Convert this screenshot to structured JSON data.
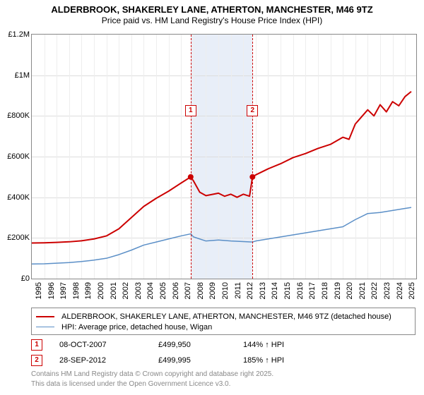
{
  "title": {
    "line1": "ALDERBROOK, SHAKERLEY LANE, ATHERTON, MANCHESTER, M46 9TZ",
    "line2": "Price paid vs. HM Land Registry's House Price Index (HPI)",
    "font_size_pt": 13,
    "color": "#000000"
  },
  "chart": {
    "type": "line",
    "background_color": "#ffffff",
    "plot_border_color": "#888888",
    "grid_color": "#dddddd",
    "grid_v_color": "#eeeeee",
    "x": {
      "min": 1995,
      "max": 2025.9,
      "ticks": [
        1995,
        1996,
        1997,
        1998,
        1999,
        2000,
        2001,
        2002,
        2003,
        2004,
        2005,
        2006,
        2007,
        2008,
        2009,
        2010,
        2011,
        2012,
        2013,
        2014,
        2015,
        2016,
        2017,
        2018,
        2019,
        2020,
        2021,
        2022,
        2023,
        2024,
        2025
      ],
      "tick_rotation_deg": -90,
      "tick_font_size_pt": 11
    },
    "y": {
      "min": 0,
      "max": 1200000,
      "tick_step": 200000,
      "tick_labels": [
        "£0",
        "£200K",
        "£400K",
        "£600K",
        "£800K",
        "£1M",
        "£1.2M"
      ],
      "tick_font_size_pt": 11
    },
    "band": {
      "x_start": 2007.77,
      "x_end": 2012.74,
      "color": "#e8eef8"
    },
    "series": [
      {
        "id": "price_paid",
        "label": "ALDERBROOK, SHAKERLEY LANE, ATHERTON, MANCHESTER, M46 9TZ (detached house)",
        "color": "#cc0000",
        "line_width": 2,
        "points": [
          [
            1995,
            175000
          ],
          [
            1996,
            176000
          ],
          [
            1997,
            178000
          ],
          [
            1998,
            181000
          ],
          [
            1999,
            186000
          ],
          [
            2000,
            195000
          ],
          [
            2001,
            210000
          ],
          [
            2002,
            245000
          ],
          [
            2003,
            300000
          ],
          [
            2004,
            355000
          ],
          [
            2005,
            395000
          ],
          [
            2006,
            430000
          ],
          [
            2007,
            470000
          ],
          [
            2007.77,
            499950
          ],
          [
            2008,
            480000
          ],
          [
            2008.5,
            425000
          ],
          [
            2009,
            408000
          ],
          [
            2010,
            420000
          ],
          [
            2010.5,
            405000
          ],
          [
            2011,
            415000
          ],
          [
            2011.5,
            400000
          ],
          [
            2012,
            415000
          ],
          [
            2012.5,
            405000
          ],
          [
            2012.74,
            499995
          ],
          [
            2013,
            510000
          ],
          [
            2014,
            540000
          ],
          [
            2015,
            565000
          ],
          [
            2016,
            595000
          ],
          [
            2017,
            615000
          ],
          [
            2018,
            640000
          ],
          [
            2019,
            660000
          ],
          [
            2020,
            695000
          ],
          [
            2020.5,
            685000
          ],
          [
            2021,
            760000
          ],
          [
            2022,
            830000
          ],
          [
            2022.5,
            800000
          ],
          [
            2023,
            855000
          ],
          [
            2023.5,
            820000
          ],
          [
            2024,
            870000
          ],
          [
            2024.5,
            850000
          ],
          [
            2025,
            895000
          ],
          [
            2025.5,
            920000
          ]
        ]
      },
      {
        "id": "hpi",
        "label": "HPI: Average price, detached house, Wigan",
        "color": "#5b8fc7",
        "line_width": 1.5,
        "points": [
          [
            1995,
            72000
          ],
          [
            1996,
            73000
          ],
          [
            1997,
            76000
          ],
          [
            1998,
            79000
          ],
          [
            1999,
            84000
          ],
          [
            2000,
            91000
          ],
          [
            2001,
            100000
          ],
          [
            2002,
            118000
          ],
          [
            2003,
            140000
          ],
          [
            2004,
            165000
          ],
          [
            2005,
            180000
          ],
          [
            2006,
            195000
          ],
          [
            2007,
            210000
          ],
          [
            2007.77,
            220000
          ],
          [
            2008,
            205000
          ],
          [
            2009,
            185000
          ],
          [
            2010,
            190000
          ],
          [
            2011,
            185000
          ],
          [
            2012,
            182000
          ],
          [
            2012.74,
            180000
          ],
          [
            2013,
            185000
          ],
          [
            2014,
            195000
          ],
          [
            2015,
            205000
          ],
          [
            2016,
            215000
          ],
          [
            2017,
            225000
          ],
          [
            2018,
            235000
          ],
          [
            2019,
            245000
          ],
          [
            2020,
            255000
          ],
          [
            2021,
            290000
          ],
          [
            2022,
            320000
          ],
          [
            2023,
            325000
          ],
          [
            2024,
            335000
          ],
          [
            2025,
            345000
          ],
          [
            2025.5,
            350000
          ]
        ]
      }
    ],
    "markers": [
      {
        "n": "1",
        "x": 2007.77,
        "y": 499950,
        "point_color": "#cc0000",
        "point_radius": 4
      },
      {
        "n": "2",
        "x": 2012.74,
        "y": 499995,
        "point_color": "#cc0000",
        "point_radius": 4
      }
    ]
  },
  "legend": {
    "border_color": "#888888",
    "font_size_pt": 11
  },
  "events": [
    {
      "n": "1",
      "date": "08-OCT-2007",
      "price": "£499,950",
      "pct": "144% ↑ HPI"
    },
    {
      "n": "2",
      "date": "28-SEP-2012",
      "price": "£499,995",
      "pct": "185% ↑ HPI"
    }
  ],
  "footer": {
    "line1": "Contains HM Land Registry data © Crown copyright and database right 2025.",
    "line2": "This data is licensed under the Open Government Licence v3.0.",
    "color": "#888888",
    "font_size_pt": 10
  }
}
